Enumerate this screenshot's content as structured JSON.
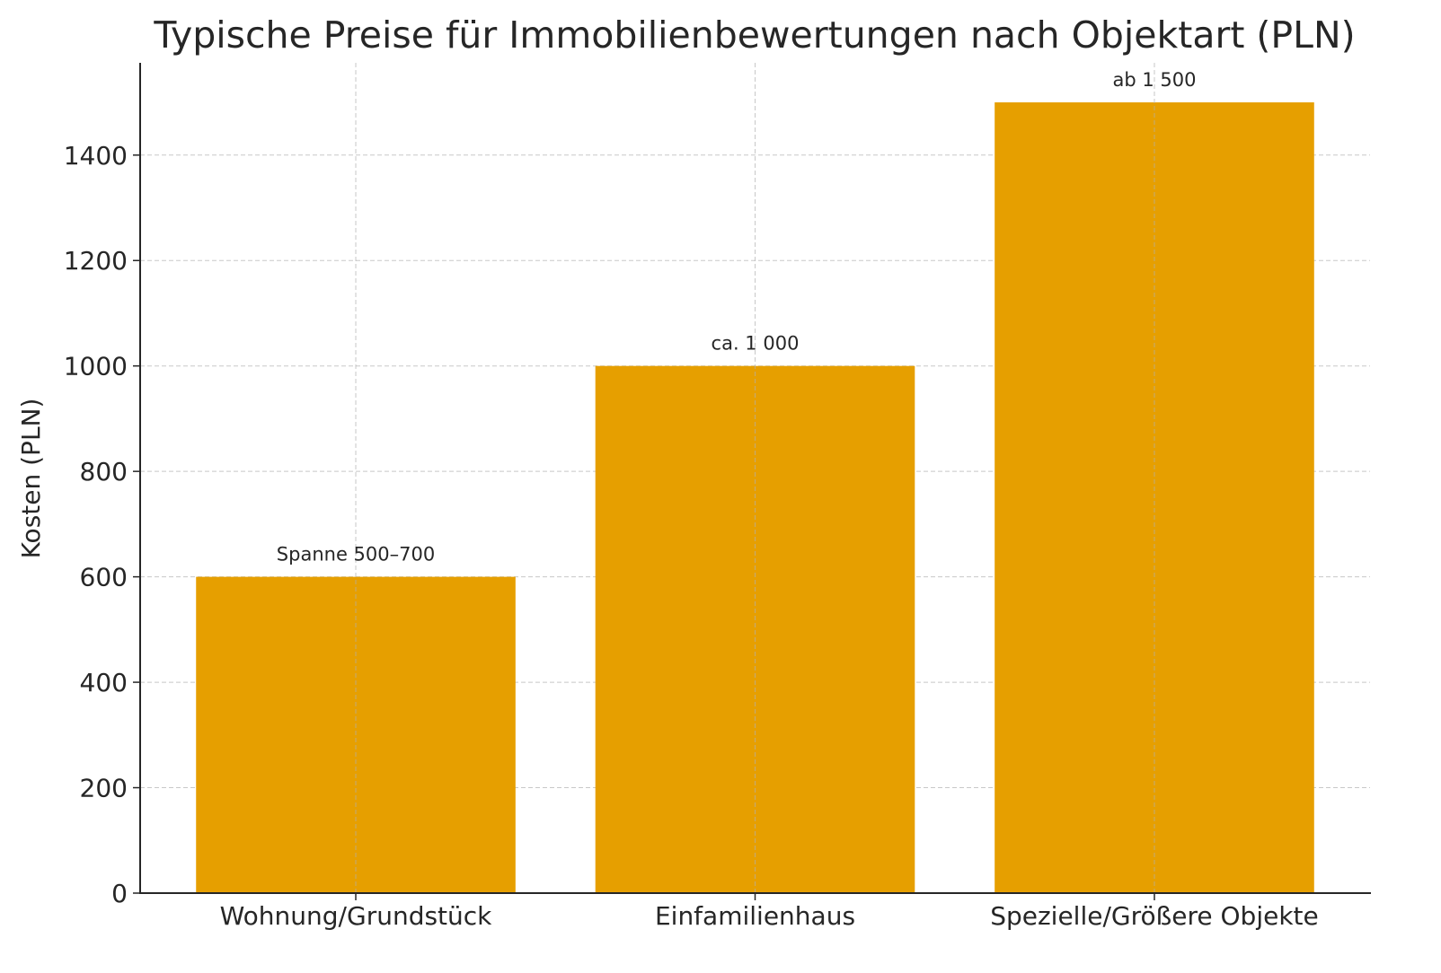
{
  "chart_data": {
    "type": "bar",
    "title": "Typische Preise für Immobilienbewertungen nach Objektart (PLN)",
    "xlabel": "",
    "ylabel": "Kosten (PLN)",
    "categories": [
      "Wohnung/Grundstück",
      "Einfamilienhaus",
      "Spezielle/Größere Objekte"
    ],
    "values": [
      600,
      1000,
      1500
    ],
    "data_labels": [
      "Spanne 500–700",
      "ca. 1 000",
      "ab 1 500"
    ],
    "ylim": [
      0,
      1575
    ],
    "yticks": [
      0,
      200,
      400,
      600,
      800,
      1000,
      1200,
      1400
    ],
    "grid": true,
    "grid_style": "dashed",
    "bar_color": "#E69F00"
  }
}
